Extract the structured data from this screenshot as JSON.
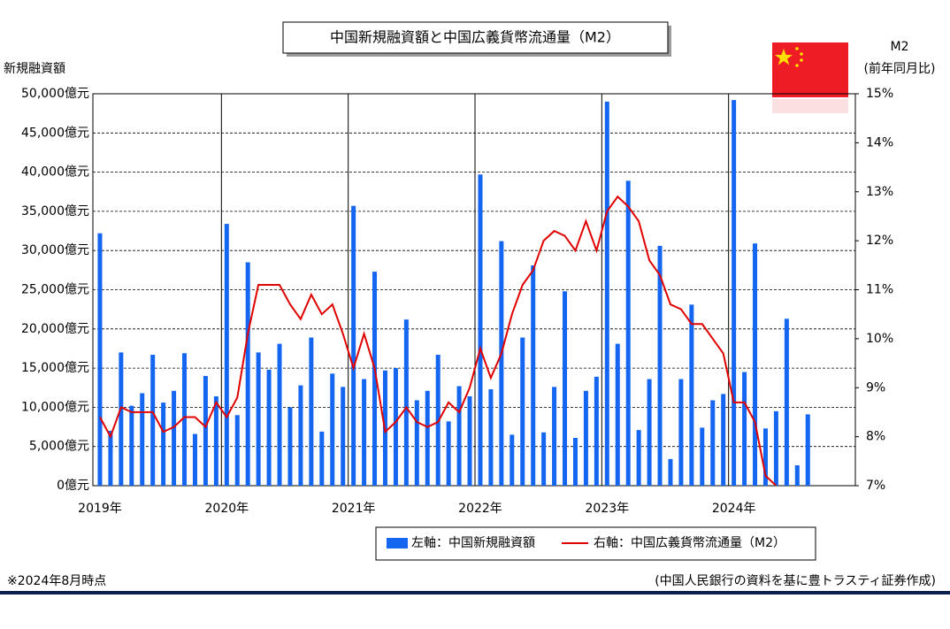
{
  "chart_data": {
    "type": "bar_line",
    "title": "中国新規融資額と中国広義貨幣流通量（M2）",
    "y_label": "新規融資額",
    "y2_label": [
      "M2",
      "(前年同月比)"
    ],
    "footnote": "※2024年8月時点",
    "source": "(中国人民銀行の資料を基に豊トラスティ証券作成)",
    "categories": [
      "2019年",
      null,
      null,
      null,
      null,
      null,
      null,
      null,
      null,
      null,
      null,
      null,
      "2020年",
      null,
      null,
      null,
      null,
      null,
      null,
      null,
      null,
      null,
      null,
      null,
      "2021年",
      null,
      null,
      null,
      null,
      null,
      null,
      null,
      null,
      null,
      null,
      null,
      "2022年",
      null,
      null,
      null,
      null,
      null,
      null,
      null,
      null,
      null,
      null,
      null,
      "2023年",
      null,
      null,
      null,
      null,
      null,
      null,
      null,
      null,
      null,
      null,
      null,
      "2024年",
      null,
      null,
      null,
      null,
      null,
      null,
      null
    ],
    "series": [
      {
        "name": "左軸：中国新規融資額",
        "kind": "bar",
        "color": "#1466f0",
        "axis": "y",
        "values": [
          32200,
          7000,
          17000,
          10200,
          11800,
          16700,
          10600,
          12100,
          16900,
          6600,
          14000,
          11400,
          33400,
          9000,
          28500,
          17000,
          14800,
          18100,
          10000,
          12800,
          18900,
          6900,
          14300,
          12600,
          35700,
          13600,
          27300,
          14700,
          15000,
          21200,
          10900,
          12100,
          16700,
          8200,
          12700,
          11400,
          39700,
          12300,
          31200,
          6500,
          18900,
          28100,
          6800,
          12600,
          24800,
          6100,
          12100,
          13900,
          49000,
          18100,
          38900,
          7100,
          13600,
          30600,
          3400,
          13600,
          23100,
          7400,
          10900,
          11700,
          49200,
          14500,
          30900,
          7300,
          9500,
          21300,
          2600,
          9100
        ]
      },
      {
        "name": "右軸：中国広義貨幣流通量（M2）",
        "kind": "line",
        "color": "#e00000",
        "axis": "y2",
        "values": [
          8.4,
          8.0,
          8.6,
          8.5,
          8.5,
          8.5,
          8.1,
          8.2,
          8.4,
          8.4,
          8.2,
          8.7,
          8.4,
          8.8,
          10.1,
          11.1,
          11.1,
          11.1,
          10.7,
          10.4,
          10.9,
          10.5,
          10.7,
          10.1,
          9.4,
          10.1,
          9.4,
          8.1,
          8.3,
          8.6,
          8.3,
          8.2,
          8.3,
          8.7,
          8.5,
          9.0,
          9.8,
          9.2,
          9.7,
          10.5,
          11.1,
          11.4,
          12.0,
          12.2,
          12.1,
          11.8,
          12.4,
          11.8,
          12.6,
          12.9,
          12.7,
          12.4,
          11.6,
          11.3,
          10.7,
          10.6,
          10.3,
          10.3,
          10.0,
          9.7,
          8.7,
          8.7,
          8.3,
          7.2,
          7.0,
          null,
          null,
          null
        ]
      }
    ],
    "ylim": [
      0,
      50000
    ],
    "yticks": [
      {
        "value": 0,
        "label": "0億元"
      },
      {
        "value": 5000,
        "label": "5,000億元"
      },
      {
        "value": 10000,
        "label": "10,000億元"
      },
      {
        "value": 15000,
        "label": "15,000億元"
      },
      {
        "value": 20000,
        "label": "20,000億元"
      },
      {
        "value": 25000,
        "label": "25,000億元"
      },
      {
        "value": 30000,
        "label": "30,000億元"
      },
      {
        "value": 35000,
        "label": "35,000億元"
      },
      {
        "value": 40000,
        "label": "40,000億元"
      },
      {
        "value": 45000,
        "label": "45,000億元"
      },
      {
        "value": 50000,
        "label": "50,000億元"
      }
    ],
    "y2lim": [
      7,
      15
    ],
    "y2ticks": [
      {
        "value": 7,
        "label": "7%"
      },
      {
        "value": 8,
        "label": "8%"
      },
      {
        "value": 9,
        "label": "9%"
      },
      {
        "value": 10,
        "label": "10%"
      },
      {
        "value": 11,
        "label": "11%"
      },
      {
        "value": 12,
        "label": "12%"
      },
      {
        "value": 13,
        "label": "13%"
      },
      {
        "value": 14,
        "label": "14%"
      },
      {
        "value": 15,
        "label": "15%"
      }
    ],
    "grid": true
  }
}
